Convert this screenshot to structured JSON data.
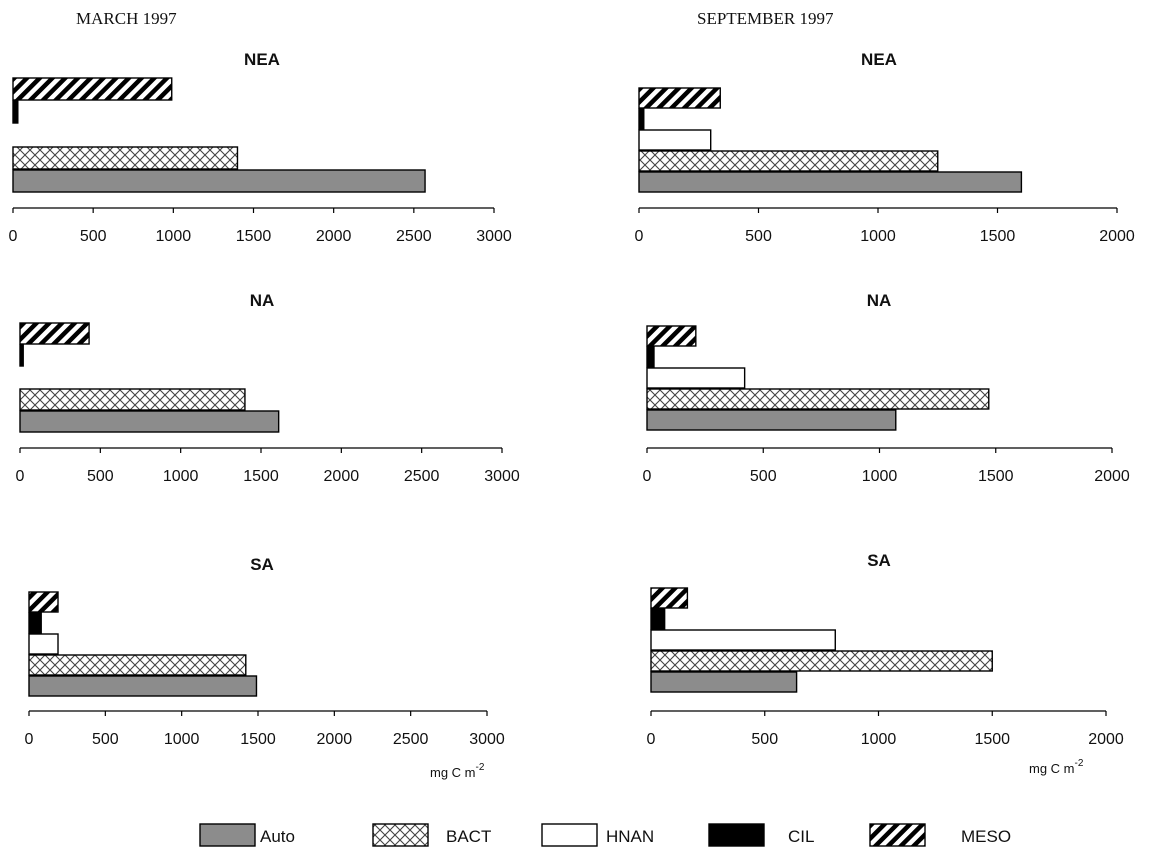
{
  "columns": [
    "MARCH 1997",
    "SEPTEMBER 1997"
  ],
  "legend": [
    {
      "label": "Auto",
      "pattern": "auto"
    },
    {
      "label": "BACT",
      "pattern": "bact"
    },
    {
      "label": "HNAN",
      "pattern": "hnan"
    },
    {
      "label": "CIL",
      "pattern": "cil"
    },
    {
      "label": "MESO",
      "pattern": "meso"
    }
  ],
  "colors": {
    "auto": "#8c8c8c",
    "hnan": "#ffffff",
    "cil": "#000000",
    "line": "#000000"
  },
  "chart_data": [
    {
      "type": "bar",
      "orientation": "horizontal",
      "title": "NEA",
      "column": "MARCH 1997",
      "xlabel": "",
      "xlim": [
        0,
        3000
      ],
      "xticks": [
        0,
        500,
        1000,
        1500,
        2000,
        2500,
        3000
      ],
      "categories": [
        "Auto",
        "BACT",
        "HNAN",
        "CIL",
        "MESO"
      ],
      "values": [
        2570,
        1400,
        0,
        30,
        990
      ]
    },
    {
      "type": "bar",
      "orientation": "horizontal",
      "title": "NA",
      "column": "MARCH 1997",
      "xlabel": "",
      "xlim": [
        0,
        3000
      ],
      "xticks": [
        0,
        500,
        1000,
        1500,
        2000,
        2500,
        3000
      ],
      "categories": [
        "Auto",
        "BACT",
        "HNAN",
        "CIL",
        "MESO"
      ],
      "values": [
        1610,
        1400,
        0,
        20,
        430
      ]
    },
    {
      "type": "bar",
      "orientation": "horizontal",
      "title": "SA",
      "column": "MARCH 1997",
      "xlabel": "mg C m",
      "xlabel_sup": "-2",
      "xlim": [
        0,
        3000
      ],
      "xticks": [
        0,
        500,
        1000,
        1500,
        2000,
        2500,
        3000
      ],
      "categories": [
        "Auto",
        "BACT",
        "HNAN",
        "CIL",
        "MESO"
      ],
      "values": [
        1490,
        1420,
        190,
        80,
        190
      ]
    },
    {
      "type": "bar",
      "orientation": "horizontal",
      "title": "NEA",
      "column": "SEPTEMBER 1997",
      "xlabel": "",
      "xlim": [
        0,
        2000
      ],
      "xticks": [
        0,
        500,
        1000,
        1500,
        2000
      ],
      "categories": [
        "Auto",
        "BACT",
        "HNAN",
        "CIL",
        "MESO"
      ],
      "values": [
        1600,
        1250,
        300,
        20,
        340
      ]
    },
    {
      "type": "bar",
      "orientation": "horizontal",
      "title": "NA",
      "column": "SEPTEMBER 1997",
      "xlabel": "",
      "xlim": [
        0,
        2000
      ],
      "xticks": [
        0,
        500,
        1000,
        1500,
        2000
      ],
      "categories": [
        "Auto",
        "BACT",
        "HNAN",
        "CIL",
        "MESO"
      ],
      "values": [
        1070,
        1470,
        420,
        30,
        210
      ]
    },
    {
      "type": "bar",
      "orientation": "horizontal",
      "title": "SA",
      "column": "SEPTEMBER 1997",
      "xlabel": "mg C m",
      "xlabel_sup": "-2",
      "xlim": [
        0,
        2000
      ],
      "xticks": [
        0,
        500,
        1000,
        1500,
        2000
      ],
      "categories": [
        "Auto",
        "BACT",
        "HNAN",
        "CIL",
        "MESO"
      ],
      "values": [
        640,
        1500,
        810,
        60,
        160
      ]
    }
  ]
}
